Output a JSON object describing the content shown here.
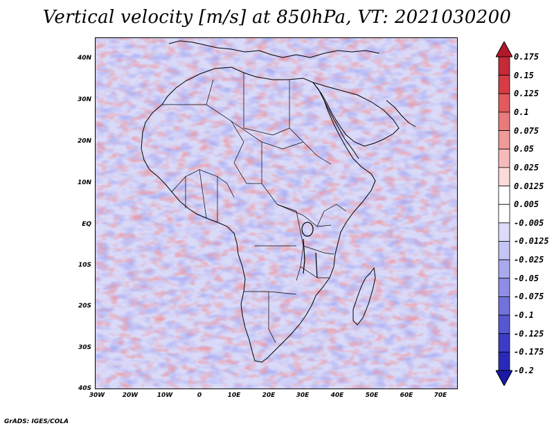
{
  "title": "Vertical velocity [m/s] at 850hPa, VT: 2021030200",
  "credit": "GrADS: IGES/COLA",
  "lat_labels": [
    "40N",
    "30N",
    "20N",
    "10N",
    "EQ",
    "10S",
    "20S",
    "30S",
    "40S"
  ],
  "lon_labels": [
    "30W",
    "20W",
    "10W",
    "0",
    "10E",
    "20E",
    "30E",
    "40E",
    "50E",
    "60E",
    "70E"
  ],
  "colorbar": {
    "labels": [
      "0.175",
      "0.15",
      "0.125",
      "0.1",
      "0.075",
      "0.05",
      "0.025",
      "0.0125",
      "0.005",
      "-0.005",
      "-0.0125",
      "-0.025",
      "-0.05",
      "-0.075",
      "-0.1",
      "-0.125",
      "-0.175",
      "-0.2"
    ],
    "colors": [
      "#b2182b",
      "#c62a37",
      "#d73c44",
      "#e25a5e",
      "#ea7a7b",
      "#f09a9a",
      "#f6baba",
      "#fbdada",
      "#ffffff",
      "#ffffff",
      "#dcdcfa",
      "#c4c4f5",
      "#a9a9ee",
      "#8e8ee6",
      "#7272dd",
      "#5757d2",
      "#3c3cc6",
      "#2a2ab8",
      "#1a1aa6"
    ]
  },
  "palette": {
    "positive": "#d73c44",
    "negative": "#5757d2",
    "neutral": "#ffffff",
    "border": "#000000"
  }
}
